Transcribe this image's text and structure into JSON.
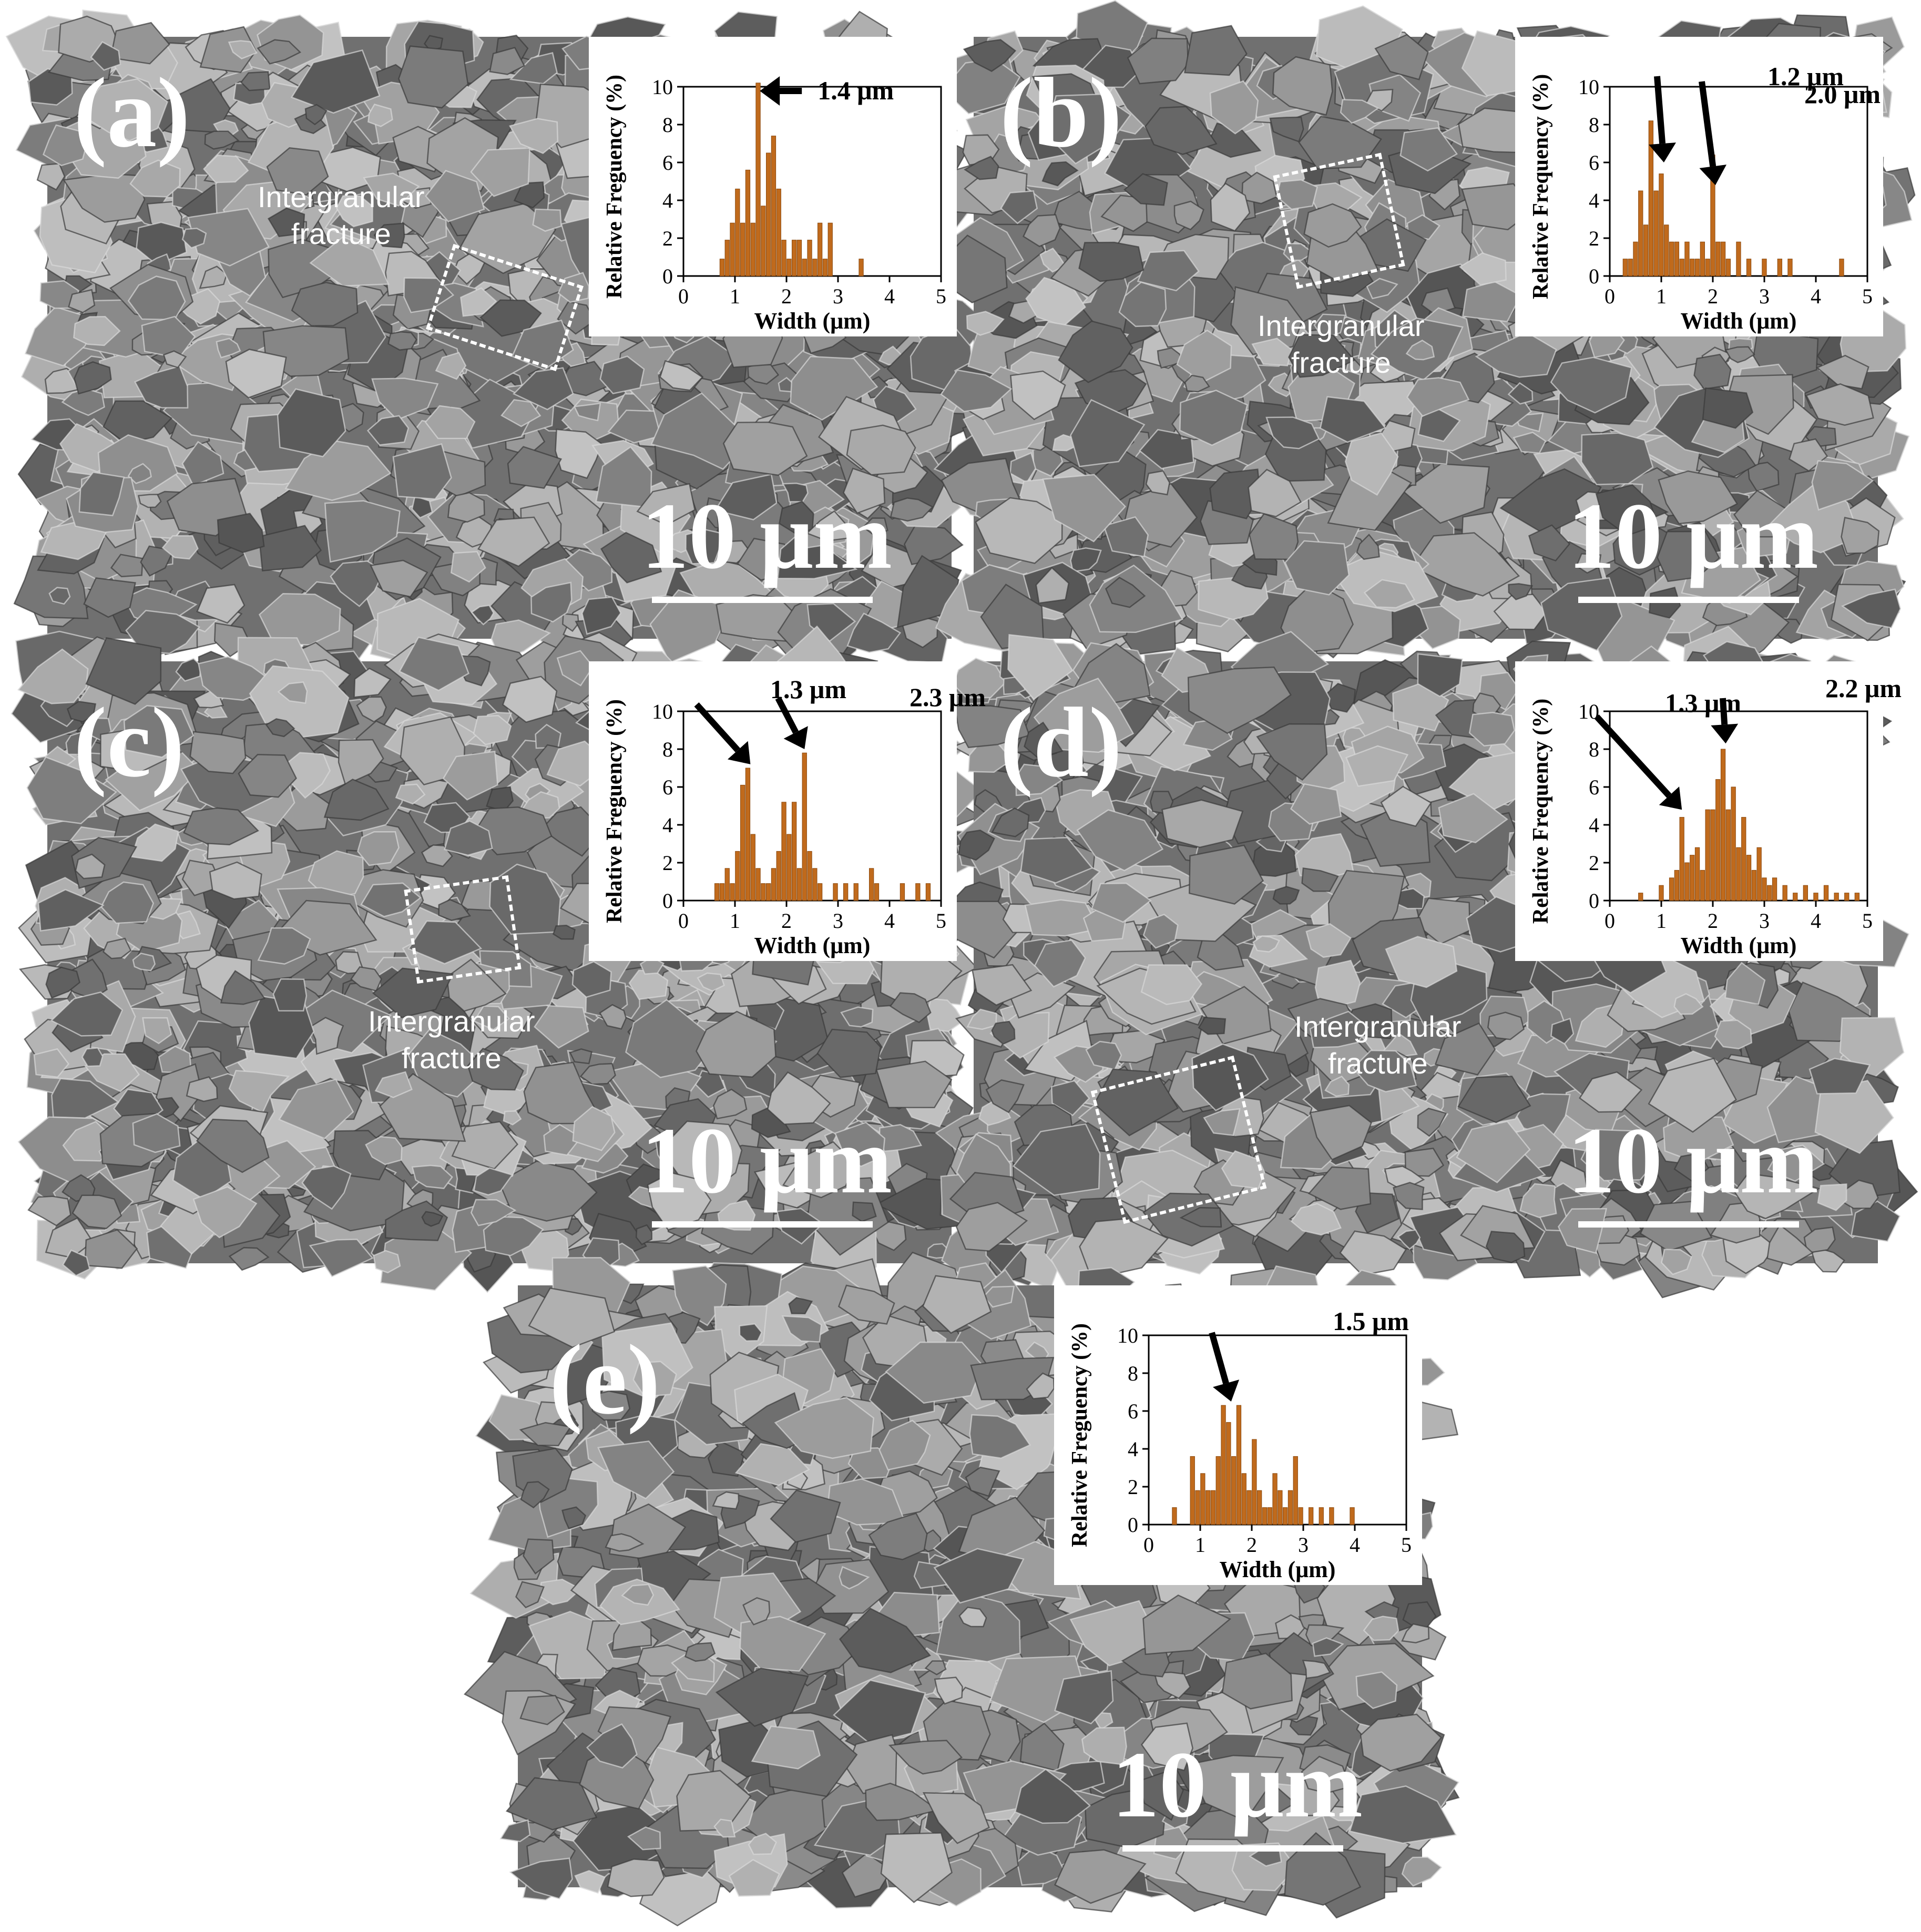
{
  "figure": {
    "panels": [
      {
        "id": "a",
        "label": "(a)",
        "scale_text": "10 μm",
        "fracture_lines": [
          "Intergranular",
          "fracture"
        ]
      },
      {
        "id": "b",
        "label": "(b)",
        "scale_text": "10 μm",
        "fracture_lines": [
          "Intergranular",
          "fracture"
        ]
      },
      {
        "id": "c",
        "label": "(c)",
        "scale_text": "10 μm",
        "fracture_lines": [
          "Intergranular",
          "fracture"
        ]
      },
      {
        "id": "d",
        "label": "(d)",
        "scale_text": "10 μm",
        "fracture_lines": [
          "Intergranular",
          "fracture"
        ]
      },
      {
        "id": "e",
        "label": "(e)",
        "scale_text": "10 μm"
      }
    ]
  },
  "chart_data": [
    {
      "panel": "a",
      "type": "bar",
      "xlabel": "Width (μm)",
      "ylabel": "Relative Freguency (%)",
      "xlim": [
        0,
        5
      ],
      "ylim": [
        0,
        10
      ],
      "xticks": [
        "0",
        "1",
        "2",
        "3",
        "4",
        "5"
      ],
      "yticks": [
        "0",
        "2",
        "4",
        "6",
        "8",
        "10"
      ],
      "bar_color": "#c06a1c",
      "annotations": [
        "1.4 μm"
      ],
      "x": [
        0.75,
        0.85,
        0.95,
        1.05,
        1.15,
        1.25,
        1.35,
        1.45,
        1.55,
        1.65,
        1.75,
        1.85,
        1.95,
        2.05,
        2.15,
        2.25,
        2.35,
        2.45,
        2.55,
        2.65,
        2.75,
        2.85,
        3.45
      ],
      "values": [
        0.9,
        1.9,
        2.8,
        4.6,
        2.8,
        5.6,
        2.8,
        10.2,
        3.7,
        6.5,
        7.4,
        4.6,
        1.9,
        0.9,
        1.9,
        1.9,
        0.9,
        1.9,
        0.9,
        2.8,
        0.9,
        2.8,
        0.9
      ]
    },
    {
      "panel": "b",
      "type": "bar",
      "xlabel": "Width (μm)",
      "ylabel": "Relative Frequency (%)",
      "xlim": [
        0,
        5
      ],
      "ylim": [
        0,
        10
      ],
      "xticks": [
        "0",
        "1",
        "2",
        "3",
        "4",
        "5"
      ],
      "yticks": [
        "0",
        "2",
        "4",
        "6",
        "8",
        "10"
      ],
      "bar_color": "#c06a1c",
      "annotations": [
        "1.2 μm",
        "2.0 μm"
      ],
      "x": [
        0.3,
        0.4,
        0.5,
        0.6,
        0.7,
        0.8,
        0.9,
        1.0,
        1.1,
        1.2,
        1.3,
        1.4,
        1.5,
        1.6,
        1.7,
        1.8,
        1.9,
        2.0,
        2.1,
        2.2,
        2.3,
        2.5,
        2.7,
        3.0,
        3.3,
        3.5,
        4.5
      ],
      "values": [
        0.9,
        0.9,
        1.8,
        4.5,
        2.7,
        8.2,
        4.5,
        5.4,
        2.7,
        1.8,
        1.8,
        0.9,
        1.8,
        0.9,
        0.9,
        1.8,
        0.9,
        6.4,
        1.8,
        1.8,
        0.9,
        1.8,
        0.9,
        0.9,
        0.9,
        0.9,
        0.9
      ]
    },
    {
      "panel": "c",
      "type": "bar",
      "xlabel": "Width (μm)",
      "ylabel": "Relative Freguency (%)",
      "xlim": [
        0,
        5
      ],
      "ylim": [
        0,
        10
      ],
      "xticks": [
        "0",
        "1",
        "2",
        "3",
        "4",
        "5"
      ],
      "yticks": [
        "0",
        "2",
        "4",
        "6",
        "8",
        "10"
      ],
      "bar_color": "#c06a1c",
      "annotations": [
        "1.3 μm",
        "2.3 μm"
      ],
      "x": [
        0.65,
        0.75,
        0.85,
        0.95,
        1.05,
        1.15,
        1.25,
        1.35,
        1.45,
        1.55,
        1.65,
        1.75,
        1.85,
        1.95,
        2.05,
        2.15,
        2.25,
        2.35,
        2.45,
        2.55,
        2.65,
        2.95,
        3.15,
        3.35,
        3.65,
        3.75,
        4.25,
        4.55,
        4.75
      ],
      "values": [
        0.9,
        0.9,
        1.7,
        0.9,
        2.6,
        6.1,
        7.0,
        3.5,
        1.7,
        0.9,
        0.9,
        1.7,
        2.6,
        5.2,
        3.5,
        5.2,
        1.7,
        7.8,
        2.6,
        1.7,
        0.9,
        0.9,
        0.9,
        0.9,
        1.7,
        0.9,
        0.9,
        0.9,
        0.9
      ]
    },
    {
      "panel": "d",
      "type": "bar",
      "xlabel": "Width (μm)",
      "ylabel": "Relative Frequency (%)",
      "xlim": [
        0,
        5
      ],
      "ylim": [
        0,
        10
      ],
      "xticks": [
        "0",
        "1",
        "2",
        "3",
        "4",
        "5"
      ],
      "yticks": [
        "0",
        "2",
        "4",
        "6",
        "8",
        "10"
      ],
      "bar_color": "#c06a1c",
      "annotations": [
        "1.3 μm",
        "2.2 μm"
      ],
      "x": [
        0.6,
        1.0,
        1.2,
        1.3,
        1.4,
        1.5,
        1.6,
        1.7,
        1.8,
        1.9,
        2.0,
        2.1,
        2.2,
        2.3,
        2.4,
        2.5,
        2.6,
        2.7,
        2.8,
        2.9,
        3.0,
        3.1,
        3.2,
        3.4,
        3.6,
        3.8,
        4.0,
        4.2,
        4.4,
        4.6,
        4.8
      ],
      "values": [
        0.4,
        0.8,
        1.2,
        1.6,
        4.4,
        2.0,
        2.4,
        2.8,
        1.6,
        4.8,
        4.8,
        6.4,
        8.0,
        4.8,
        6.0,
        2.8,
        4.4,
        2.4,
        1.6,
        2.8,
        1.2,
        0.8,
        1.2,
        0.8,
        0.4,
        0.8,
        0.4,
        0.8,
        0.4,
        0.4,
        0.4
      ]
    },
    {
      "panel": "e",
      "type": "bar",
      "xlabel": "Width (μm)",
      "ylabel": "Relative Freguency (%)",
      "xlim": [
        0,
        5
      ],
      "ylim": [
        0,
        10
      ],
      "xticks": [
        "0",
        "1",
        "2",
        "3",
        "4",
        "5"
      ],
      "yticks": [
        "0",
        "2",
        "4",
        "6",
        "8",
        "10"
      ],
      "bar_color": "#c06a1c",
      "annotations": [
        "1.5 μm"
      ],
      "x": [
        0.5,
        0.85,
        0.95,
        1.05,
        1.15,
        1.25,
        1.35,
        1.45,
        1.55,
        1.65,
        1.75,
        1.85,
        1.95,
        2.05,
        2.15,
        2.25,
        2.35,
        2.45,
        2.55,
        2.65,
        2.75,
        2.85,
        2.95,
        3.15,
        3.35,
        3.55,
        3.95
      ],
      "values": [
        0.9,
        3.6,
        1.8,
        2.7,
        1.8,
        1.8,
        3.6,
        6.3,
        5.4,
        3.6,
        6.3,
        2.7,
        1.8,
        4.5,
        1.8,
        0.9,
        0.9,
        2.7,
        1.8,
        0.9,
        1.8,
        3.6,
        0.9,
        0.9,
        0.9,
        0.9,
        0.9
      ]
    }
  ]
}
